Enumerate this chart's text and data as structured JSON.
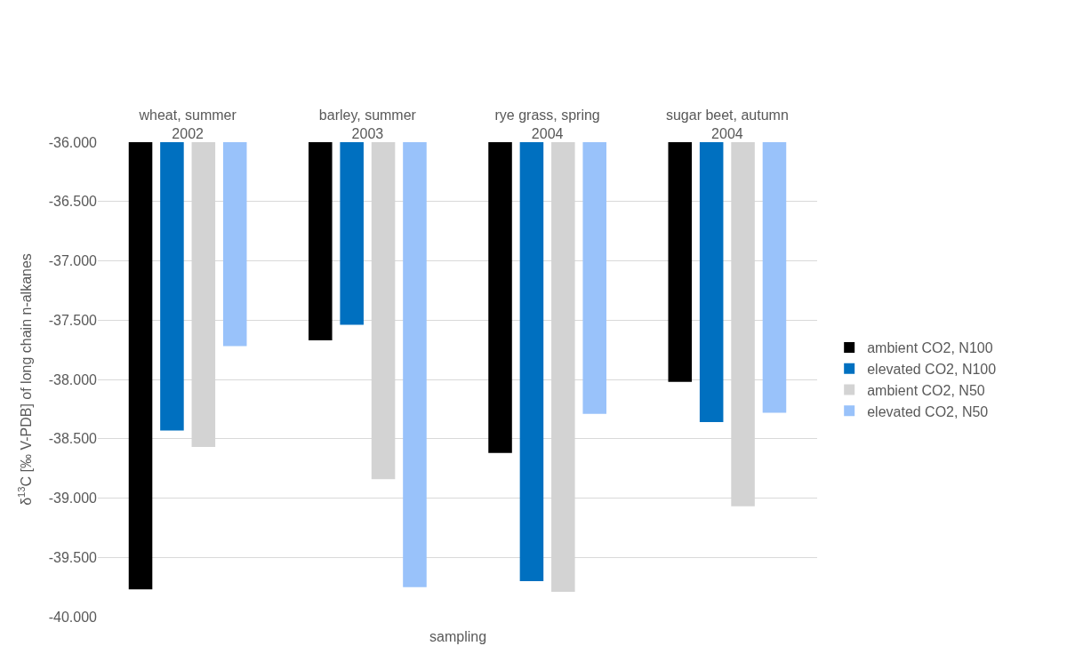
{
  "chart_data": {
    "type": "bar",
    "xlabel": "sampling",
    "ylabel": "δ$^{13}$C [‰ V-PDB] of long chain n-alkanes",
    "categories": [
      "wheat, summer 2002",
      "barley, summer 2003",
      "rye grass, spring 2004",
      "sugar beet, autumn 2004"
    ],
    "series": [
      {
        "name": "ambient CO2, N100",
        "color": "#000000",
        "values": [
          -39.77,
          -37.67,
          -38.62,
          -38.02
        ]
      },
      {
        "name": "elevated CO2, N100",
        "color": "#0070c0",
        "values": [
          -38.43,
          -37.54,
          -39.7,
          -38.36
        ]
      },
      {
        "name": "ambient CO2, N50",
        "color": "#d3d3d3",
        "values": [
          -38.57,
          -38.84,
          -39.79,
          -39.07
        ]
      },
      {
        "name": "elevated CO2, N50",
        "color": "#99c2fa",
        "values": [
          -37.72,
          -39.75,
          -38.29,
          -38.28
        ]
      }
    ],
    "ylim": [
      -40,
      -36
    ],
    "yticks": [
      {
        "value": -40,
        "label": "-40.000"
      },
      {
        "value": -39.5,
        "label": "-39.500"
      },
      {
        "value": -39,
        "label": "-39.000"
      },
      {
        "value": -38.5,
        "label": "-38.500"
      },
      {
        "value": -38,
        "label": "-38.000"
      },
      {
        "value": -37.5,
        "label": "-37.500"
      },
      {
        "value": -37,
        "label": "-37.000"
      },
      {
        "value": -36.5,
        "label": "-36.500"
      },
      {
        "value": -36,
        "label": "-36.000"
      }
    ],
    "grid": "y",
    "legend": "right"
  }
}
